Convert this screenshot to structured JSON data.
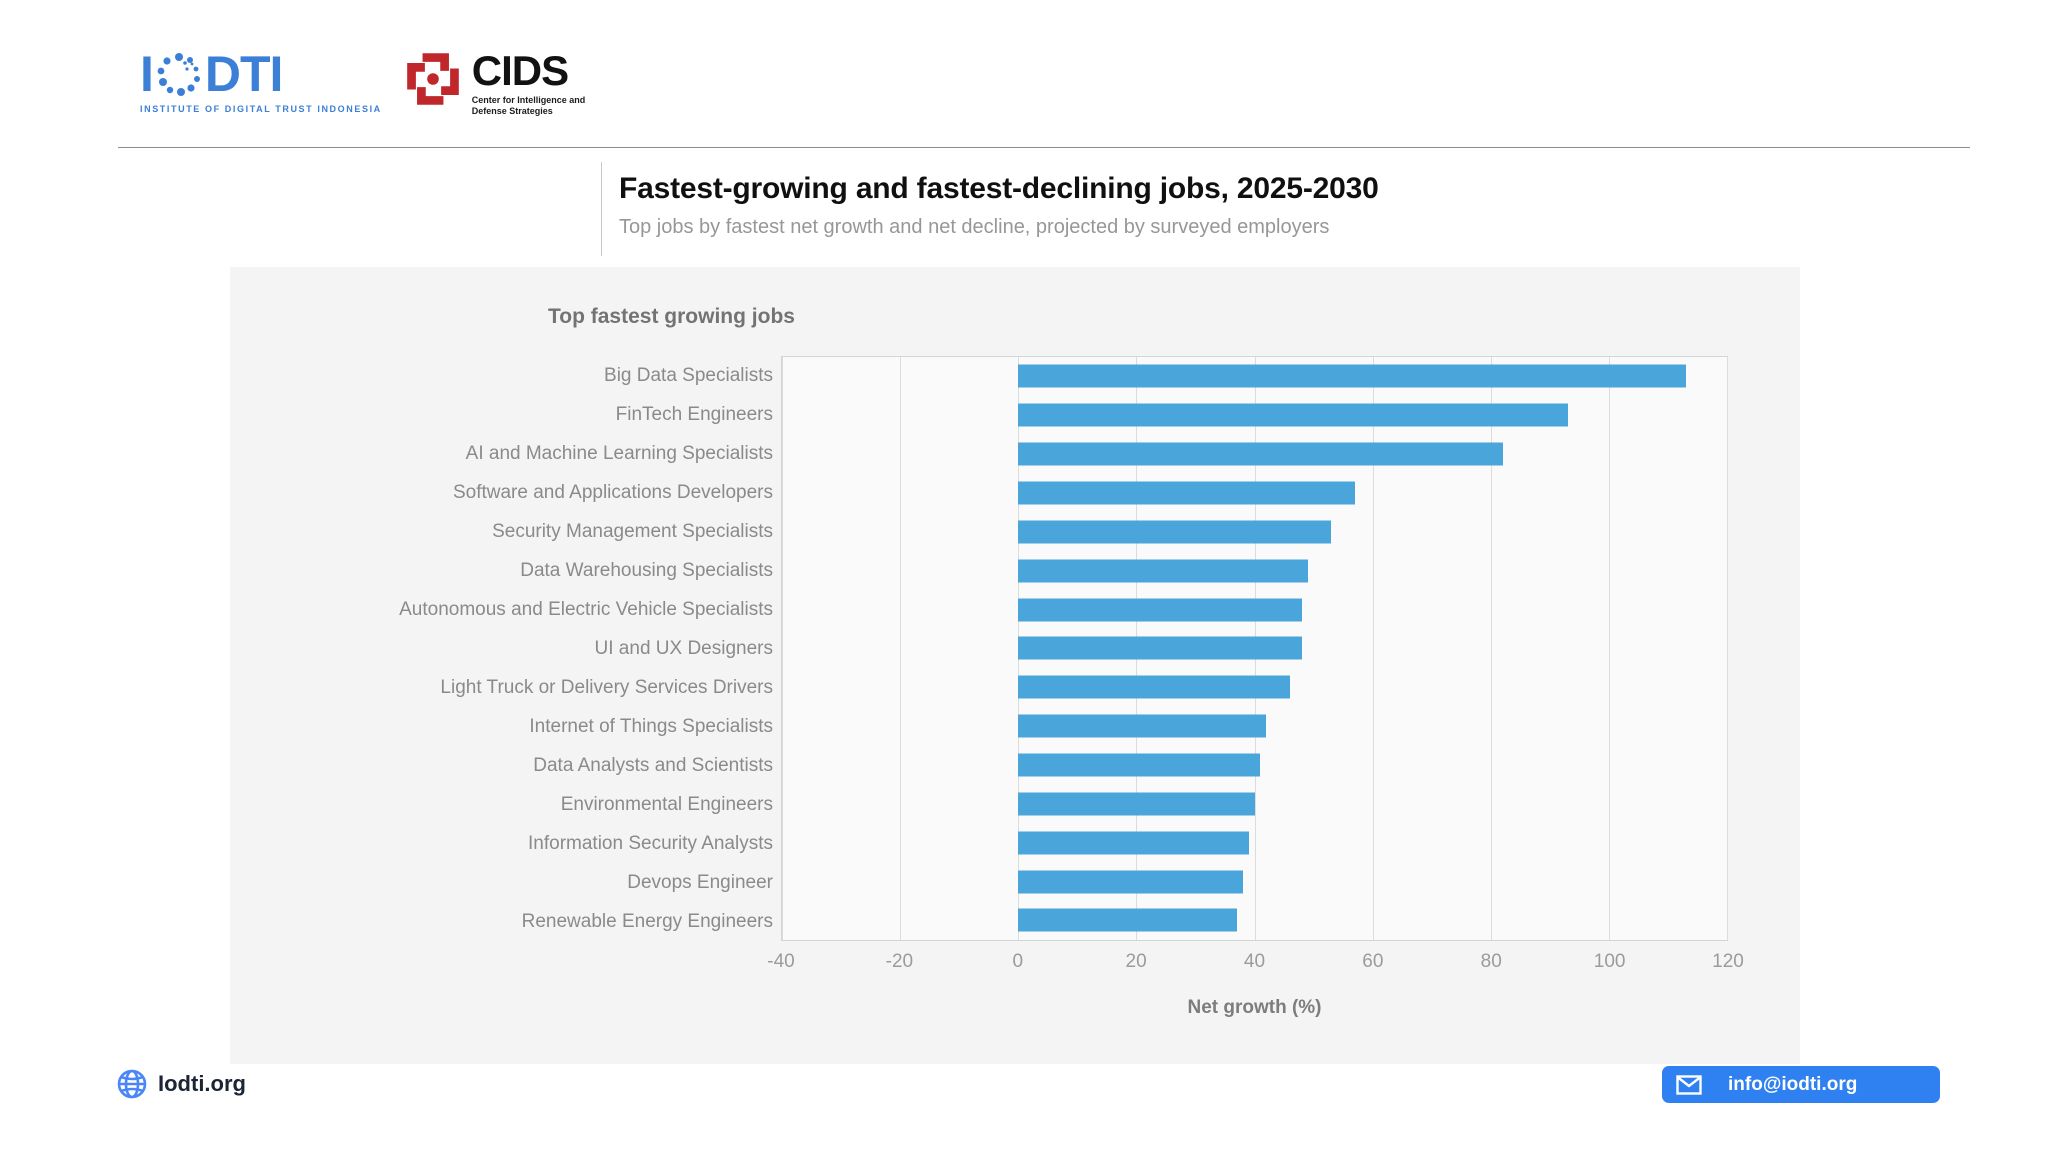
{
  "header": {
    "logo_iodti": {
      "text_left": "I",
      "text_right": "DTI",
      "tagline": "INSTITUTE OF DIGITAL TRUST INDONESIA",
      "brand_blue": "#3c7fd6"
    },
    "logo_cids": {
      "text": "CIDS",
      "tagline_line1": "Center for Intelligence and",
      "tagline_line2": "Defense Strategies",
      "brand_red": "#bf272b"
    }
  },
  "title_block": {
    "title": "Fastest-growing and fastest-declining jobs, 2025-2030",
    "subtitle": "Top jobs by fastest net growth and net decline, projected by surveyed employers"
  },
  "chart_data": {
    "type": "bar",
    "orientation": "horizontal",
    "title": "Top fastest growing jobs",
    "categories": [
      "Big Data Specialists",
      "FinTech Engineers",
      "AI and Machine Learning Specialists",
      "Software and Applications Developers",
      "Security Management Specialists",
      "Data Warehousing Specialists",
      "Autonomous and Electric Vehicle Specialists",
      "UI and UX Designers",
      "Light Truck or Delivery Services Drivers",
      "Internet of Things Specialists",
      "Data Analysts and Scientists",
      "Environmental Engineers",
      "Information Security Analysts",
      "Devops Engineer",
      "Renewable Energy Engineers"
    ],
    "values": [
      113,
      93,
      82,
      57,
      53,
      49,
      48,
      48,
      46,
      42,
      41,
      40,
      39,
      38,
      37
    ],
    "xlabel": "Net growth (%)",
    "xticks": [
      -40,
      -20,
      0,
      20,
      40,
      60,
      80,
      100,
      120
    ],
    "xlim": [
      -40,
      120
    ],
    "bar_color": "#4aa5db",
    "grid": true,
    "legend": "none"
  },
  "footer": {
    "website": "Iodti.org",
    "email_button_label": "info@iodti.org",
    "accent_blue": "#2f80f0"
  }
}
